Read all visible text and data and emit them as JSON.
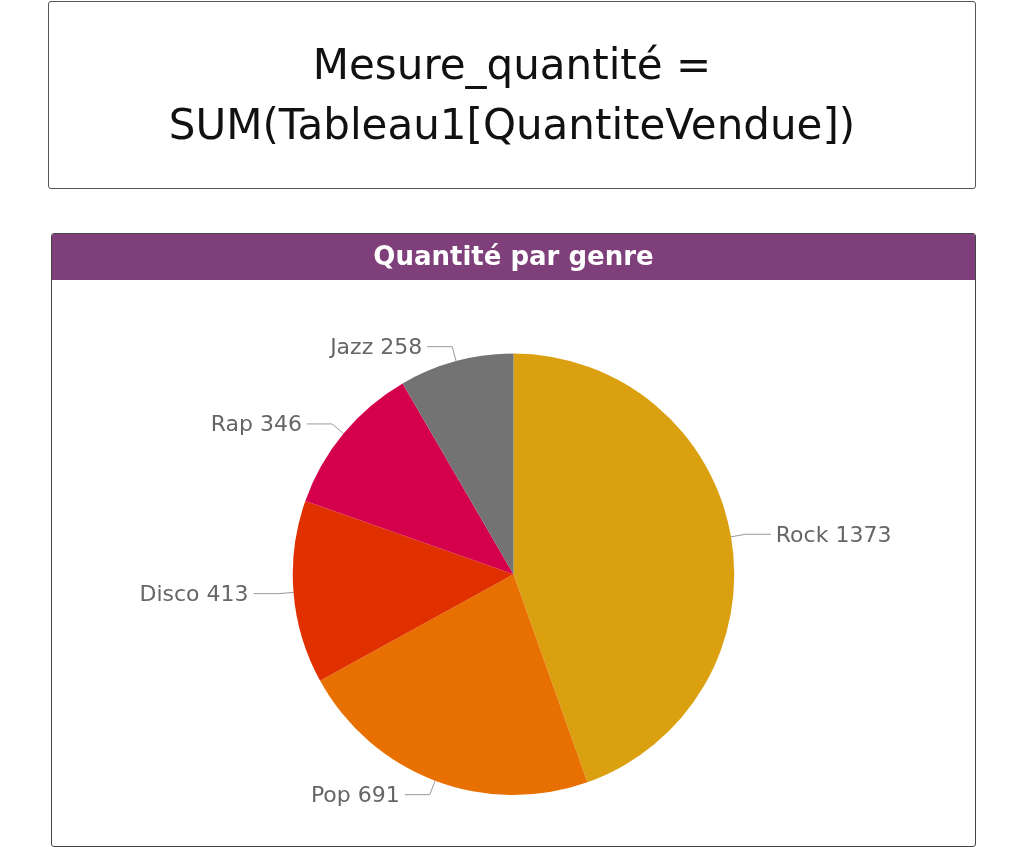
{
  "chart_data": [
    {
      "type": "other",
      "annotations": [
        "Mesure_quantité =",
        "SUM(Tableau1[QuantiteVendue])"
      ]
    },
    {
      "type": "pie",
      "title": "Quantité par genre",
      "categories": [
        "Rock",
        "Pop",
        "Disco",
        "Rap",
        "Jazz"
      ],
      "values": [
        1373,
        691,
        413,
        346,
        258
      ],
      "colors": [
        "#dba010",
        "#e87000",
        "#e03000",
        "#d4004c",
        "#737373"
      ],
      "data_labels": true
    }
  ]
}
